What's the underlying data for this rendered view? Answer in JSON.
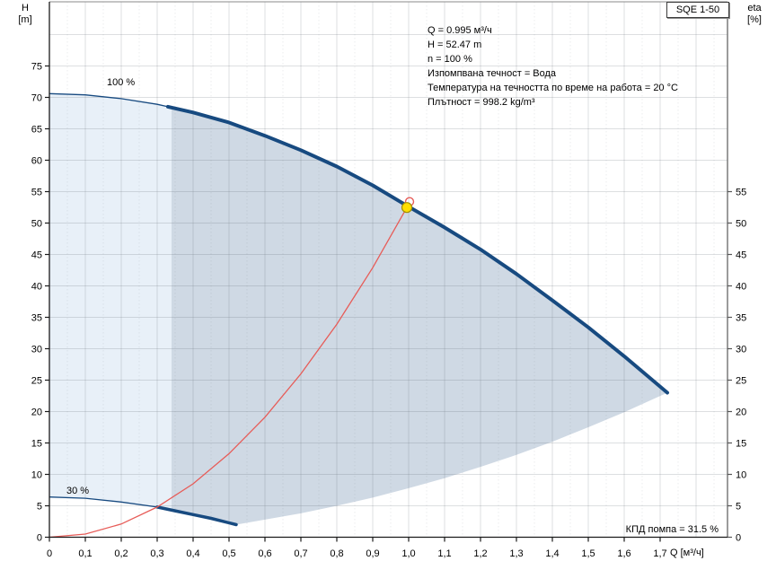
{
  "pump_title": "SQE 1-50",
  "annotation": {
    "lines": [
      "Q = 0.995 м³/ч",
      "H = 52.47 m",
      "n = 100 %",
      "Изпомпвана течност = Вода",
      "Температура на течността по време на работа = 20 °C",
      "Плътност = 998.2 kg/m³"
    ]
  },
  "efficiency_label": "КПД помпа = 31.5 %",
  "axes": {
    "x": {
      "title": "Q [м³/ч]",
      "min": 0,
      "max": 1.89,
      "major_step": 0.1,
      "minor_step": 0.05,
      "tick_values": [
        0,
        0.1,
        0.2,
        0.3,
        0.4,
        0.5,
        0.6,
        0.7,
        0.8,
        0.9,
        1.0,
        1.1,
        1.2,
        1.3,
        1.4,
        1.5,
        1.6,
        1.7
      ],
      "tick_labels": [
        "0",
        "0,1",
        "0,2",
        "0,3",
        "0,4",
        "0,5",
        "0,6",
        "0,7",
        "0,8",
        "0,9",
        "1,0",
        "1,1",
        "1,2",
        "1,3",
        "1,4",
        "1,5",
        "1,6",
        "1,7"
      ]
    },
    "y_left": {
      "title_line1": "H",
      "title_line2": "[m]",
      "min": 0,
      "max": 85,
      "major_step": 5,
      "tick_values": [
        0,
        5,
        10,
        15,
        20,
        25,
        30,
        35,
        40,
        45,
        50,
        55,
        60,
        65,
        70,
        75
      ],
      "tick_labels": [
        "0",
        "5",
        "10",
        "15",
        "20",
        "25",
        "30",
        "35",
        "40",
        "45",
        "50",
        "55",
        "60",
        "65",
        "70",
        "75"
      ]
    },
    "y_right": {
      "title_line1": "eta",
      "title_line2": "[%]",
      "tick_values": [
        0,
        5,
        10,
        15,
        20,
        25,
        30,
        35,
        40,
        45,
        50,
        55
      ],
      "tick_labels": [
        "0",
        "5",
        "10",
        "15",
        "20",
        "25",
        "30",
        "35",
        "40",
        "45",
        "50",
        "55"
      ]
    }
  },
  "chart_data": {
    "type": "line",
    "title": "SQE 1-50",
    "xlabel": "Q [м³/ч]",
    "ylabel_left": "H [m]",
    "ylabel_right": "eta [%]",
    "x_range": [
      0,
      1.89
    ],
    "y_range": [
      0,
      85
    ],
    "grid": "on",
    "series": [
      {
        "name": "pump-curve-100",
        "label": "100 %",
        "color": "#174A80",
        "thick_from_q": 0.33,
        "points": [
          [
            0,
            70.6
          ],
          [
            0.1,
            70.4
          ],
          [
            0.2,
            69.8
          ],
          [
            0.3,
            68.9
          ],
          [
            0.4,
            67.6
          ],
          [
            0.5,
            66.0
          ],
          [
            0.6,
            63.9
          ],
          [
            0.7,
            61.6
          ],
          [
            0.8,
            59.0
          ],
          [
            0.9,
            56.0
          ],
          [
            1.0,
            52.6
          ],
          [
            1.1,
            49.3
          ],
          [
            1.2,
            45.8
          ],
          [
            1.3,
            41.9
          ],
          [
            1.4,
            37.7
          ],
          [
            1.5,
            33.4
          ],
          [
            1.6,
            28.8
          ],
          [
            1.72,
            23.0
          ]
        ]
      },
      {
        "name": "pump-curve-30",
        "label": "30 %",
        "color": "#174A80",
        "thick_from_q": 0.3,
        "points": [
          [
            0,
            6.4
          ],
          [
            0.1,
            6.2
          ],
          [
            0.2,
            5.6
          ],
          [
            0.3,
            4.8
          ],
          [
            0.35,
            4.2
          ],
          [
            0.4,
            3.6
          ],
          [
            0.45,
            3.0
          ],
          [
            0.52,
            2.0
          ]
        ]
      },
      {
        "name": "system-curve",
        "color": "#E75C58",
        "points": [
          [
            0,
            0
          ],
          [
            0.1,
            0.5
          ],
          [
            0.2,
            2.1
          ],
          [
            0.3,
            4.8
          ],
          [
            0.4,
            8.5
          ],
          [
            0.5,
            13.3
          ],
          [
            0.6,
            19.1
          ],
          [
            0.7,
            26.0
          ],
          [
            0.8,
            33.9
          ],
          [
            0.9,
            42.9
          ],
          [
            0.995,
            52.47
          ]
        ]
      },
      {
        "name": "operating-range-lower-boundary",
        "color": "none",
        "points": [
          [
            0.52,
            2.0
          ],
          [
            0.6,
            2.8
          ],
          [
            0.7,
            3.8
          ],
          [
            0.8,
            5.0
          ],
          [
            0.9,
            6.3
          ],
          [
            1.0,
            7.8
          ],
          [
            1.1,
            9.4
          ],
          [
            1.2,
            11.2
          ],
          [
            1.3,
            13.1
          ],
          [
            1.4,
            15.2
          ],
          [
            1.5,
            17.5
          ],
          [
            1.6,
            19.9
          ],
          [
            1.72,
            23.0
          ]
        ]
      }
    ],
    "duty_point": {
      "q": 0.995,
      "h": 52.47,
      "marker_fill": "#FFDF00",
      "marker_edge": "#A08F00",
      "ring_color": "#E75C58"
    },
    "operating_range": {
      "q_left_boundary": 0.34,
      "fill_light": "#E8F0F8",
      "fill_dark": "#CFD9E4"
    }
  }
}
